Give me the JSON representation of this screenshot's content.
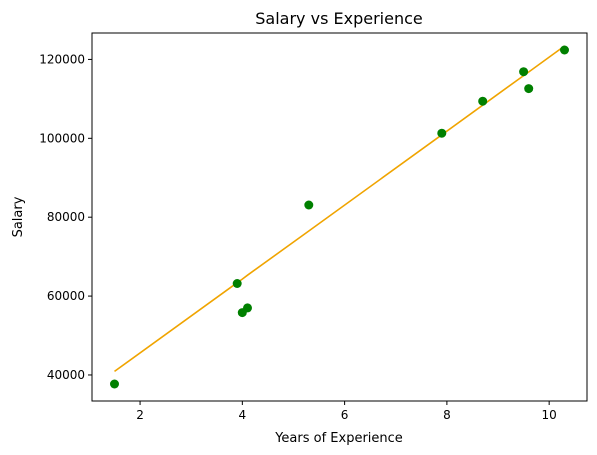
{
  "chart_data": {
    "type": "scatter",
    "title": "Salary vs Experience",
    "xlabel": "Years of Experience",
    "ylabel": "Salary",
    "xlim": [
      1.06,
      10.74
    ],
    "ylim": [
      33400,
      126700
    ],
    "xticks": [
      2,
      4,
      6,
      8,
      10
    ],
    "yticks": [
      40000,
      60000,
      80000,
      100000,
      120000
    ],
    "grid": false,
    "series": [
      {
        "type": "scatter",
        "color": "#008000",
        "points": [
          [
            1.5,
            37700
          ],
          [
            3.9,
            63200
          ],
          [
            4.0,
            55800
          ],
          [
            4.1,
            57000
          ],
          [
            5.3,
            83100
          ],
          [
            7.9,
            101300
          ],
          [
            8.7,
            109400
          ],
          [
            9.5,
            116900
          ],
          [
            9.6,
            112600
          ],
          [
            10.3,
            122400
          ]
        ]
      },
      {
        "type": "line",
        "color": "#f0a400",
        "points": [
          [
            1.5,
            40900
          ],
          [
            3.9,
            63400
          ],
          [
            4.0,
            64300
          ],
          [
            4.1,
            65300
          ],
          [
            5.3,
            76500
          ],
          [
            7.9,
            100900
          ],
          [
            8.7,
            108400
          ],
          [
            9.5,
            115900
          ],
          [
            9.6,
            116800
          ],
          [
            10.3,
            123400
          ]
        ]
      }
    ]
  }
}
